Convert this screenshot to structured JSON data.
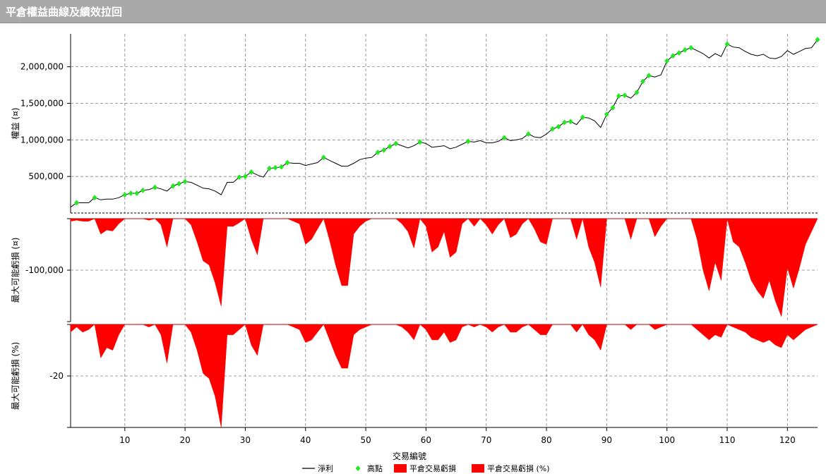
{
  "window": {
    "title": "平倉權益曲線及績效拉回"
  },
  "chart_data": [
    {
      "panel": "equity",
      "type": "line",
      "ylabel": "權益 (¤)",
      "ylim": [
        0,
        2450000
      ],
      "yticks": [
        500000,
        1000000,
        1500000,
        2000000
      ],
      "ytick_labels": [
        "500,000",
        "1,000,000",
        "1,500,000",
        "2,000,000"
      ],
      "xlim": [
        0,
        125
      ],
      "series": [
        {
          "name": "淨利",
          "color": "#000000",
          "x": [
            1,
            2,
            3,
            4,
            5,
            6,
            7,
            8,
            9,
            10,
            11,
            12,
            13,
            14,
            15,
            16,
            17,
            18,
            19,
            20,
            21,
            22,
            23,
            24,
            25,
            26,
            27,
            28,
            29,
            30,
            31,
            32,
            33,
            34,
            35,
            36,
            37,
            38,
            39,
            40,
            41,
            42,
            43,
            44,
            45,
            46,
            47,
            48,
            49,
            50,
            51,
            52,
            53,
            54,
            55,
            56,
            57,
            58,
            59,
            60,
            61,
            62,
            63,
            64,
            65,
            66,
            67,
            68,
            69,
            70,
            71,
            72,
            73,
            74,
            75,
            76,
            77,
            78,
            79,
            80,
            81,
            82,
            83,
            84,
            85,
            86,
            87,
            88,
            89,
            90,
            91,
            92,
            93,
            94,
            95,
            96,
            97,
            98,
            99,
            100,
            101,
            102,
            103,
            104,
            105,
            106,
            107,
            108,
            109,
            110,
            111,
            112,
            113,
            114,
            115,
            116,
            117,
            118,
            119,
            120,
            121,
            122,
            123,
            124,
            125
          ],
          "y": [
            80000,
            140000,
            140000,
            140000,
            210000,
            180000,
            190000,
            190000,
            210000,
            250000,
            270000,
            270000,
            310000,
            320000,
            350000,
            330000,
            300000,
            370000,
            400000,
            430000,
            420000,
            380000,
            340000,
            330000,
            300000,
            250000,
            420000,
            420000,
            490000,
            500000,
            560000,
            520000,
            490000,
            610000,
            620000,
            630000,
            690000,
            680000,
            680000,
            650000,
            670000,
            690000,
            760000,
            720000,
            680000,
            640000,
            640000,
            680000,
            730000,
            750000,
            760000,
            830000,
            860000,
            910000,
            950000,
            920000,
            890000,
            920000,
            970000,
            950000,
            900000,
            910000,
            920000,
            880000,
            900000,
            940000,
            980000,
            970000,
            990000,
            960000,
            960000,
            980000,
            1030000,
            990000,
            1000000,
            1020000,
            1080000,
            1040000,
            1030000,
            1080000,
            1150000,
            1180000,
            1240000,
            1250000,
            1210000,
            1310000,
            1300000,
            1260000,
            1170000,
            1350000,
            1440000,
            1600000,
            1610000,
            1570000,
            1650000,
            1800000,
            1880000,
            1860000,
            1890000,
            2080000,
            2150000,
            2190000,
            2230000,
            2260000,
            2220000,
            2180000,
            2120000,
            2180000,
            2140000,
            2310000,
            2270000,
            2260000,
            2210000,
            2170000,
            2150000,
            2170000,
            2120000,
            2110000,
            2140000,
            2220000,
            2170000,
            2210000,
            2250000,
            2260000,
            2370000
          ]
        },
        {
          "name": "高點",
          "color": "#22e822",
          "marker": "diamond",
          "x": [
            2,
            5,
            10,
            11,
            12,
            13,
            15,
            18,
            19,
            20,
            29,
            30,
            31,
            34,
            35,
            36,
            37,
            43,
            52,
            53,
            54,
            55,
            59,
            67,
            73,
            77,
            81,
            82,
            83,
            84,
            86,
            90,
            91,
            92,
            93,
            95,
            96,
            97,
            100,
            101,
            102,
            103,
            104,
            110,
            125
          ],
          "y": [
            140000,
            210000,
            250000,
            270000,
            270000,
            310000,
            350000,
            370000,
            400000,
            430000,
            490000,
            500000,
            560000,
            610000,
            620000,
            630000,
            690000,
            760000,
            830000,
            860000,
            910000,
            950000,
            970000,
            980000,
            1030000,
            1080000,
            1150000,
            1180000,
            1240000,
            1250000,
            1310000,
            1350000,
            1440000,
            1600000,
            1610000,
            1650000,
            1800000,
            1880000,
            2080000,
            2150000,
            2190000,
            2230000,
            2260000,
            2310000,
            2370000
          ]
        }
      ]
    },
    {
      "panel": "drawdown_amount",
      "type": "area",
      "ylabel": "最大可能虧損 (¤)",
      "ylim": [
        -200000,
        0
      ],
      "yticks": [
        -100000
      ],
      "ytick_labels": [
        "-100,000"
      ],
      "series": [
        {
          "name": "平倉交易虧損",
          "color": "#ff0000",
          "x": [
            1,
            2,
            3,
            4,
            5,
            6,
            7,
            8,
            9,
            10,
            11,
            12,
            13,
            14,
            15,
            16,
            17,
            18,
            19,
            20,
            21,
            22,
            23,
            24,
            25,
            26,
            27,
            28,
            29,
            30,
            31,
            32,
            33,
            34,
            35,
            36,
            37,
            38,
            39,
            40,
            41,
            42,
            43,
            44,
            45,
            46,
            47,
            48,
            49,
            50,
            51,
            52,
            53,
            54,
            55,
            56,
            57,
            58,
            59,
            60,
            61,
            62,
            63,
            64,
            65,
            66,
            67,
            68,
            69,
            70,
            71,
            72,
            73,
            74,
            75,
            76,
            77,
            78,
            79,
            80,
            81,
            82,
            83,
            84,
            85,
            86,
            87,
            88,
            89,
            90,
            91,
            92,
            93,
            94,
            95,
            96,
            97,
            98,
            99,
            100,
            101,
            102,
            103,
            104,
            105,
            106,
            107,
            108,
            109,
            110,
            111,
            112,
            113,
            114,
            115,
            116,
            117,
            118,
            119,
            120,
            121,
            122,
            123,
            124,
            125
          ],
          "y": [
            -5000,
            -3000,
            -5000,
            -5000,
            0,
            -30000,
            -22000,
            -24000,
            -10000,
            0,
            0,
            0,
            0,
            -3000,
            0,
            -12000,
            -55000,
            0,
            0,
            0,
            -12000,
            -45000,
            -82000,
            -90000,
            -125000,
            -170000,
            -15000,
            -15000,
            -8000,
            0,
            -40000,
            -70000,
            0,
            0,
            0,
            0,
            0,
            -5000,
            -10000,
            -50000,
            -40000,
            -20000,
            0,
            -42000,
            -90000,
            -130000,
            -130000,
            -30000,
            -15000,
            -5000,
            0,
            0,
            0,
            0,
            0,
            -10000,
            -25000,
            -57000,
            0,
            -15000,
            -65000,
            -55000,
            -25000,
            -75000,
            -65000,
            -10000,
            0,
            -15000,
            0,
            -12000,
            -30000,
            -12000,
            0,
            -37000,
            -30000,
            -10000,
            0,
            -20000,
            -45000,
            -50000,
            0,
            0,
            0,
            0,
            -40000,
            0,
            -55000,
            -85000,
            -133000,
            0,
            0,
            0,
            0,
            -40000,
            0,
            0,
            0,
            -35000,
            -15000,
            0,
            0,
            0,
            0,
            0,
            -40000,
            -100000,
            -140000,
            -85000,
            -120000,
            0,
            -45000,
            -55000,
            -85000,
            -120000,
            -140000,
            -155000,
            -120000,
            -160000,
            -190000,
            -95000,
            -135000,
            -95000,
            -50000,
            -25000,
            0
          ]
        }
      ]
    },
    {
      "panel": "drawdown_percent",
      "type": "area",
      "ylabel": "最大可能虧損 (%)",
      "ylim": [
        -40,
        0
      ],
      "yticks": [
        -20
      ],
      "ytick_labels": [
        "-20"
      ],
      "series": [
        {
          "name": "平倉交易虧損 (%)",
          "color": "#ff0000",
          "x": [
            1,
            2,
            3,
            4,
            5,
            6,
            7,
            8,
            9,
            10,
            11,
            12,
            13,
            14,
            15,
            16,
            17,
            18,
            19,
            20,
            21,
            22,
            23,
            24,
            25,
            26,
            27,
            28,
            29,
            30,
            31,
            32,
            33,
            34,
            35,
            36,
            37,
            38,
            39,
            40,
            41,
            42,
            43,
            44,
            45,
            46,
            47,
            48,
            49,
            50,
            51,
            52,
            53,
            54,
            55,
            56,
            57,
            58,
            59,
            60,
            61,
            62,
            63,
            64,
            65,
            66,
            67,
            68,
            69,
            70,
            71,
            72,
            73,
            74,
            75,
            76,
            77,
            78,
            79,
            80,
            81,
            82,
            83,
            84,
            85,
            86,
            87,
            88,
            89,
            90,
            91,
            92,
            93,
            94,
            95,
            96,
            97,
            98,
            99,
            100,
            101,
            102,
            103,
            104,
            105,
            106,
            107,
            108,
            109,
            110,
            111,
            112,
            113,
            114,
            115,
            116,
            117,
            118,
            119,
            120,
            121,
            122,
            123,
            124,
            125
          ],
          "y": [
            -3,
            -1,
            -3,
            -2,
            0,
            -13,
            -9,
            -10,
            -4,
            0,
            0,
            0,
            0,
            -1,
            0,
            -4,
            -15,
            0,
            0,
            0,
            -3,
            -10,
            -19,
            -21,
            -28,
            -40,
            -4,
            -4,
            -2,
            0,
            -8,
            -12,
            0,
            0,
            0,
            0,
            0,
            -1,
            -2,
            -7,
            -6,
            -3,
            0,
            -6,
            -12,
            -17,
            -17,
            -4,
            -2,
            -1,
            0,
            0,
            0,
            0,
            0,
            -1,
            -3,
            -6,
            0,
            -2,
            -6,
            -6,
            -3,
            -7,
            -6,
            -1,
            0,
            -1,
            0,
            -1,
            -3,
            -1,
            0,
            -3,
            -3,
            -1,
            0,
            -2,
            -4,
            -4,
            0,
            0,
            0,
            0,
            -3,
            0,
            -4,
            -6,
            -10,
            0,
            0,
            0,
            0,
            -2,
            0,
            0,
            0,
            -2,
            -1,
            0,
            0,
            0,
            0,
            0,
            -2,
            -4,
            -6,
            -4,
            -5,
            0,
            -1,
            -2,
            -3,
            -5,
            -6,
            -7,
            -6,
            -8,
            -9,
            -4,
            -6,
            -4,
            -2,
            -1,
            0
          ]
        }
      ]
    }
  ],
  "x_axis": {
    "label": "交易編號",
    "ticks": [
      10,
      20,
      30,
      40,
      50,
      60,
      70,
      80,
      90,
      100,
      110,
      120
    ],
    "tick_labels": [
      "10",
      "20",
      "30",
      "40",
      "50",
      "60",
      "70",
      "80",
      "90",
      "100",
      "110",
      "120"
    ]
  },
  "legend": {
    "position": "bottom-center",
    "items": [
      {
        "label": "淨利",
        "symbol": "line",
        "color": "#000000"
      },
      {
        "label": "高點",
        "symbol": "diamond",
        "color": "#22e822"
      },
      {
        "label": "平倉交易虧損",
        "symbol": "box",
        "color": "#ff0000"
      },
      {
        "label": "平倉交易虧損 (%)",
        "symbol": "box",
        "color": "#ff0000"
      }
    ]
  },
  "colors": {
    "titlebar": "#a9a9a9",
    "grid": "#808080",
    "line": "#000000",
    "highs": "#22e822",
    "drawdown": "#ff0000"
  }
}
